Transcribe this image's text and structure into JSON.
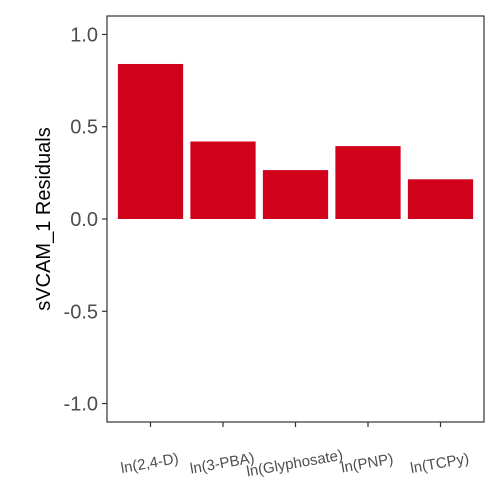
{
  "chart_data": {
    "type": "bar",
    "categories": [
      "ln(2,4-D)",
      "ln(3-PBA)",
      "ln(Glyphosate)",
      "ln(PNP)",
      "ln(TCPy)"
    ],
    "values": [
      0.84,
      0.42,
      0.265,
      0.395,
      0.215
    ],
    "xlabel": "",
    "ylabel": "sVCAM_1 Residuals",
    "ylim": [
      -1.1,
      1.1
    ],
    "yticks": [
      1.0,
      0.5,
      0.0,
      -0.5,
      -1.0
    ],
    "ytick_labels": [
      "1.0",
      "0.5",
      "0.0",
      "-0.5",
      "-1.0"
    ],
    "grid": false,
    "bar_color": "#d0021b",
    "panel_border_color": "#333333"
  }
}
